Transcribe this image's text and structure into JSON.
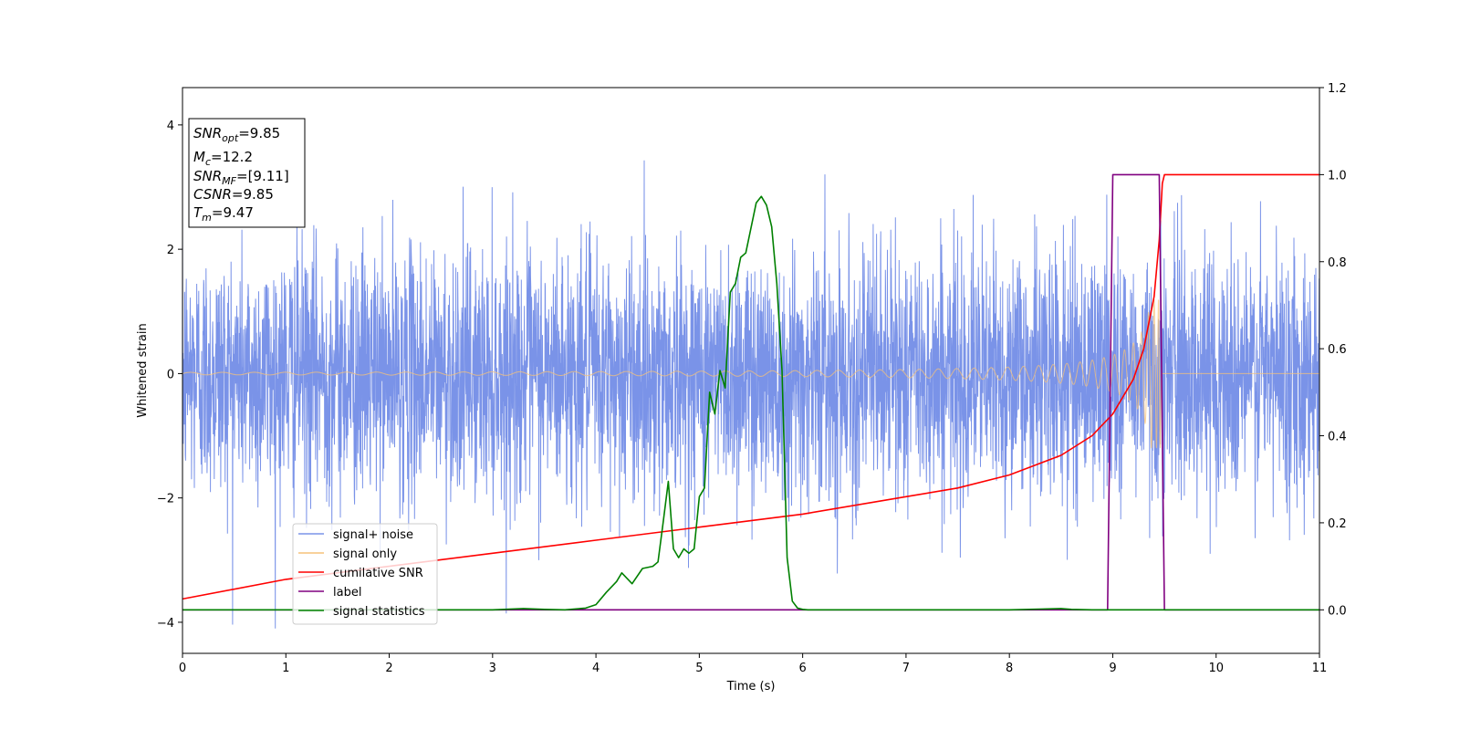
{
  "chart_data": {
    "type": "line",
    "title": "",
    "xlabel": "Time (s)",
    "ylabel": "Whitened strain",
    "ylabel_right": "",
    "xlim": [
      0,
      11
    ],
    "ylim": [
      -4.5,
      4.6
    ],
    "ylim_right": [
      -0.1,
      1.2
    ],
    "xticks": [
      "0",
      "1",
      "2",
      "3",
      "4",
      "5",
      "6",
      "7",
      "8",
      "9",
      "10",
      "11"
    ],
    "yticks": [
      "−4",
      "−2",
      "0",
      "2",
      "4"
    ],
    "yticks_right": [
      "0.0",
      "0.2",
      "0.4",
      "0.6",
      "0.8",
      "1.0",
      "1.2"
    ],
    "grid": false,
    "legend_position": "lower-left",
    "info_box": {
      "snr_opt": {
        "label": "SNR",
        "sub": "opt",
        "value": "=9.85"
      },
      "mc": {
        "label": "M",
        "sub": "c",
        "value": "=12.2"
      },
      "snr_mf": {
        "label": "SNR",
        "sub": "MF",
        "value": "=[9.11]"
      },
      "csnr": {
        "label": "CSNR",
        "value": "=9.85"
      },
      "tm": {
        "label": "T",
        "sub": "m",
        "value": "=9.47"
      }
    },
    "series": [
      {
        "name": "signal+ noise",
        "color": "#7a93e8",
        "axis": "left",
        "description_values": {
          "std": 1.0,
          "range": [
            -4.1,
            4.2
          ],
          "t_range": [
            0,
            11
          ]
        }
      },
      {
        "name": "signal only",
        "color": "#f5c27a",
        "axis": "left",
        "chirp": {
          "t_start": 0,
          "t_merge": 9.47,
          "amp_start": 0.02,
          "amp_peak": 1.2
        }
      },
      {
        "name": "cumilative SNR",
        "color": "#ff0000",
        "axis": "right",
        "x": [
          0,
          1,
          2,
          3,
          4,
          5,
          6,
          7,
          7.5,
          8,
          8.5,
          8.8,
          9,
          9.2,
          9.3,
          9.4,
          9.45,
          9.48,
          9.5,
          11
        ],
        "y": [
          0.025,
          0.07,
          0.1,
          0.13,
          0.16,
          0.19,
          0.22,
          0.26,
          0.28,
          0.31,
          0.355,
          0.4,
          0.45,
          0.53,
          0.6,
          0.72,
          0.85,
          0.98,
          1.0,
          1.0
        ]
      },
      {
        "name": "label",
        "color": "#800080",
        "axis": "right",
        "x": [
          0,
          8.95,
          9.0,
          9.45,
          9.5,
          11
        ],
        "y": [
          0,
          0,
          1,
          1,
          0,
          0
        ]
      },
      {
        "name": "signal statistics",
        "color": "#008000",
        "axis": "right",
        "x": [
          0,
          1,
          2,
          3,
          3.3,
          3.5,
          3.7,
          3.9,
          4.0,
          4.1,
          4.2,
          4.25,
          4.35,
          4.45,
          4.55,
          4.6,
          4.65,
          4.7,
          4.75,
          4.8,
          4.85,
          4.9,
          4.95,
          5.0,
          5.05,
          5.1,
          5.15,
          5.2,
          5.25,
          5.3,
          5.35,
          5.4,
          5.45,
          5.55,
          5.6,
          5.65,
          5.7,
          5.75,
          5.8,
          5.85,
          5.9,
          5.95,
          6.0,
          6.05,
          6.1,
          6.3,
          7,
          8,
          8.5,
          8.6,
          8.8,
          9,
          10,
          11
        ],
        "y": [
          0.0,
          0.0,
          0.0,
          0.0,
          0.003,
          0.001,
          0.0,
          0.004,
          0.012,
          0.04,
          0.065,
          0.085,
          0.06,
          0.095,
          0.1,
          0.11,
          0.2,
          0.295,
          0.14,
          0.12,
          0.14,
          0.13,
          0.14,
          0.26,
          0.28,
          0.5,
          0.45,
          0.55,
          0.51,
          0.73,
          0.75,
          0.81,
          0.82,
          0.935,
          0.95,
          0.93,
          0.88,
          0.75,
          0.55,
          0.12,
          0.02,
          0.004,
          0.001,
          0.0,
          0.0,
          0.0,
          0.0,
          0.0,
          0.003,
          0.001,
          0.0,
          0.0,
          0.0,
          0.0
        ]
      }
    ]
  }
}
